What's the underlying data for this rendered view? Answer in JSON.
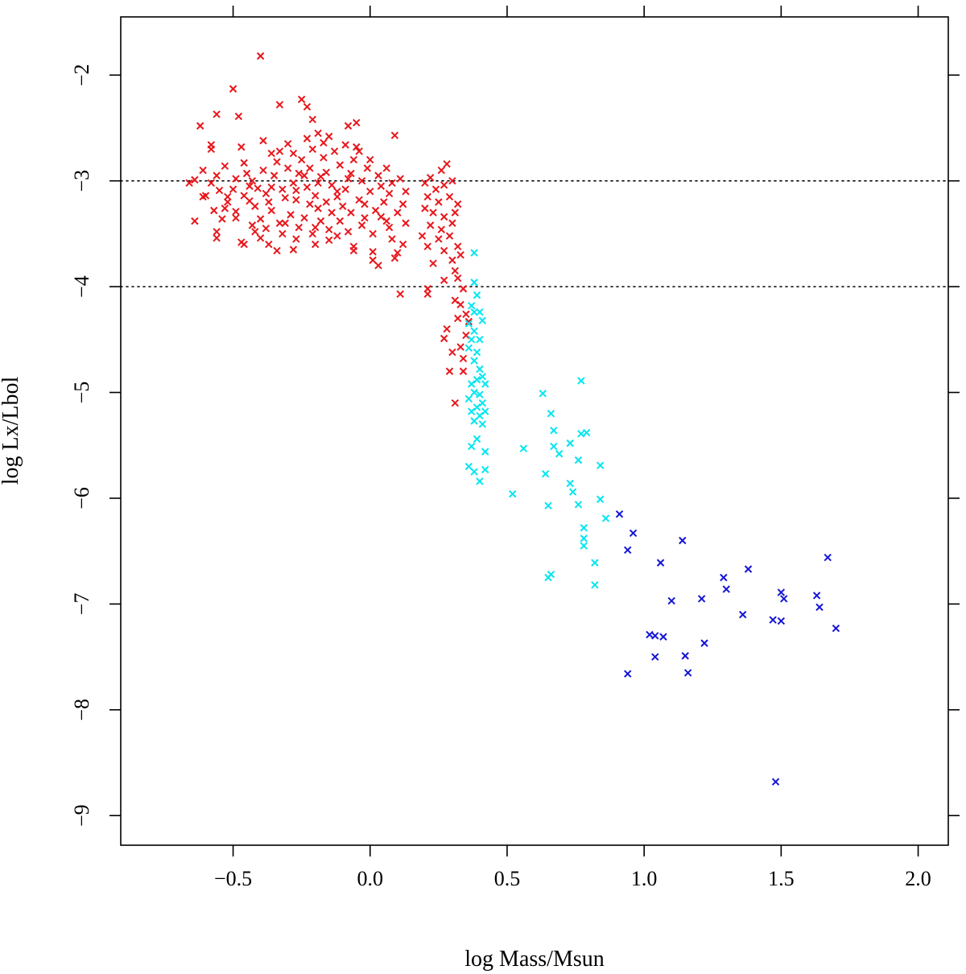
{
  "chart_data": {
    "type": "scatter",
    "title": "",
    "xlabel": "log Mass/Msun",
    "ylabel": "log Lx/Lbol",
    "xlim": [
      -0.91,
      2.11
    ],
    "ylim": [
      -9.28,
      -1.45
    ],
    "x_ticks": [
      -0.5,
      0.0,
      0.5,
      1.0,
      1.5,
      2.0
    ],
    "x_tick_labels": [
      "−0.5",
      "0.0",
      "0.5",
      "1.0",
      "1.5",
      "2.0"
    ],
    "y_ticks": [
      -2,
      -3,
      -4,
      -5,
      -6,
      -7,
      -8,
      -9
    ],
    "y_tick_labels": [
      "−2",
      "−3",
      "−4",
      "−5",
      "−6",
      "−7",
      "−8",
      "−9"
    ],
    "marker": "x",
    "grid": false,
    "reference_lines": [
      {
        "axis": "y",
        "value": -3,
        "style": "dotted"
      },
      {
        "axis": "y",
        "value": -4,
        "style": "dotted"
      }
    ],
    "series": [
      {
        "color": "#e8161b",
        "points": [
          [
            -0.4,
            -1.82
          ],
          [
            -0.5,
            -2.13
          ],
          [
            -0.25,
            -2.23
          ],
          [
            -0.33,
            -2.28
          ],
          [
            -0.23,
            -2.3
          ],
          [
            -0.56,
            -2.37
          ],
          [
            -0.48,
            -2.39
          ],
          [
            -0.62,
            -2.48
          ],
          [
            -0.21,
            -2.42
          ],
          [
            -0.05,
            -2.45
          ],
          [
            -0.08,
            -2.48
          ],
          [
            0.09,
            -2.57
          ],
          [
            -0.58,
            -2.66
          ],
          [
            -0.47,
            -2.68
          ],
          [
            -0.39,
            -2.62
          ],
          [
            -0.36,
            -2.74
          ],
          [
            -0.58,
            -2.7
          ],
          [
            -0.53,
            -2.86
          ],
          [
            -0.46,
            -2.83
          ],
          [
            -0.3,
            -2.65
          ],
          [
            -0.15,
            -2.58
          ],
          [
            0.28,
            -2.84
          ],
          [
            0.26,
            -2.9
          ],
          [
            -0.64,
            -2.99
          ],
          [
            -0.66,
            -3.02
          ],
          [
            -0.58,
            -3.02
          ],
          [
            -0.55,
            -3.09
          ],
          [
            -0.6,
            -3.14
          ],
          [
            -0.52,
            -3.15
          ],
          [
            -0.52,
            -3.2
          ],
          [
            -0.57,
            -3.28
          ],
          [
            -0.49,
            -3.29
          ],
          [
            -0.64,
            -3.38
          ],
          [
            -0.56,
            -3.48
          ],
          [
            -0.56,
            -3.54
          ],
          [
            -0.47,
            -3.58
          ],
          [
            -0.46,
            -3.6
          ],
          [
            -0.37,
            -3.6
          ],
          [
            -0.34,
            -3.66
          ],
          [
            -0.2,
            -3.6
          ],
          [
            -0.12,
            -3.52
          ],
          [
            -0.06,
            -3.62
          ],
          [
            -0.06,
            -3.66
          ],
          [
            0.01,
            -3.67
          ],
          [
            0.01,
            -3.75
          ],
          [
            0.03,
            -3.8
          ],
          [
            0.09,
            -3.73
          ],
          [
            0.1,
            -3.68
          ],
          [
            0.11,
            -4.07
          ],
          [
            -0.43,
            -3.0
          ],
          [
            -0.41,
            -3.07
          ],
          [
            -0.38,
            -3.12
          ],
          [
            -0.44,
            -3.19
          ],
          [
            -0.36,
            -3.28
          ],
          [
            -0.29,
            -3.32
          ],
          [
            -0.4,
            -3.36
          ],
          [
            -0.33,
            -3.4
          ],
          [
            -0.26,
            -3.44
          ],
          [
            -0.18,
            -3.38
          ],
          [
            -0.14,
            -3.3
          ],
          [
            -0.22,
            -3.22
          ],
          [
            -0.31,
            -3.16
          ],
          [
            -0.27,
            -3.09
          ],
          [
            -0.19,
            -3.02
          ],
          [
            -0.24,
            -2.95
          ],
          [
            -0.16,
            -2.92
          ],
          [
            -0.3,
            -2.88
          ],
          [
            -0.35,
            -2.95
          ],
          [
            -0.25,
            -2.8
          ],
          [
            -0.17,
            -2.78
          ],
          [
            -0.11,
            -2.85
          ],
          [
            -0.07,
            -2.93
          ],
          [
            -0.03,
            -3.0
          ],
          [
            -0.09,
            -3.08
          ],
          [
            -0.12,
            -3.15
          ],
          [
            -0.04,
            -3.18
          ],
          [
            0.0,
            -3.1
          ],
          [
            0.04,
            -3.05
          ],
          [
            0.07,
            -3.12
          ],
          [
            0.05,
            -3.2
          ],
          [
            0.02,
            -3.28
          ],
          [
            -0.02,
            -3.35
          ],
          [
            0.06,
            -3.38
          ],
          [
            0.1,
            -3.3
          ],
          [
            0.12,
            -3.22
          ],
          [
            0.08,
            -3.02
          ],
          [
            0.03,
            -2.95
          ],
          [
            -0.01,
            -2.88
          ],
          [
            -0.06,
            -2.8
          ],
          [
            -0.13,
            -2.72
          ],
          [
            -0.21,
            -2.7
          ],
          [
            -0.28,
            -2.74
          ],
          [
            -0.34,
            -2.82
          ],
          [
            -0.39,
            -2.9
          ],
          [
            -0.45,
            -2.93
          ],
          [
            -0.49,
            -2.98
          ],
          [
            -0.5,
            -3.08
          ],
          [
            -0.46,
            -3.14
          ],
          [
            -0.42,
            -3.24
          ],
          [
            -0.37,
            -3.2
          ],
          [
            -0.32,
            -3.08
          ],
          [
            -0.28,
            -3.02
          ],
          [
            -0.23,
            -3.06
          ],
          [
            -0.2,
            -3.14
          ],
          [
            -0.16,
            -3.2
          ],
          [
            -0.1,
            -3.24
          ],
          [
            -0.07,
            -3.3
          ],
          [
            -0.03,
            -3.42
          ],
          [
            0.01,
            -3.5
          ],
          [
            -0.15,
            -3.46
          ],
          [
            -0.21,
            -3.5
          ],
          [
            -0.27,
            -3.55
          ],
          [
            -0.32,
            -3.5
          ],
          [
            -0.38,
            -3.45
          ],
          [
            -0.43,
            -3.42
          ],
          [
            -0.49,
            -3.35
          ],
          [
            -0.53,
            -3.26
          ],
          [
            0.13,
            -3.4
          ],
          [
            0.13,
            -3.1
          ],
          [
            0.11,
            -2.98
          ],
          [
            0.06,
            -2.88
          ],
          [
            -0.26,
            -2.93
          ],
          [
            -0.22,
            -2.88
          ],
          [
            -0.18,
            -2.96
          ],
          [
            -0.14,
            -3.04
          ],
          [
            -0.08,
            -2.98
          ],
          [
            0.0,
            -2.8
          ],
          [
            -0.04,
            -2.72
          ],
          [
            -0.09,
            -2.66
          ],
          [
            -0.17,
            -2.64
          ],
          [
            -0.23,
            -2.6
          ],
          [
            0.2,
            -3.02
          ],
          [
            0.22,
            -2.97
          ],
          [
            0.24,
            -3.08
          ],
          [
            0.27,
            -3.04
          ],
          [
            0.3,
            -3.0
          ],
          [
            0.21,
            -3.15
          ],
          [
            0.25,
            -3.2
          ],
          [
            0.29,
            -3.15
          ],
          [
            0.32,
            -3.22
          ],
          [
            0.2,
            -3.26
          ],
          [
            0.23,
            -3.3
          ],
          [
            0.27,
            -3.34
          ],
          [
            0.31,
            -3.3
          ],
          [
            0.22,
            -3.42
          ],
          [
            0.26,
            -3.46
          ],
          [
            0.3,
            -3.4
          ],
          [
            0.19,
            -3.52
          ],
          [
            0.25,
            -3.55
          ],
          [
            0.29,
            -3.52
          ],
          [
            0.21,
            -3.62
          ],
          [
            0.27,
            -3.66
          ],
          [
            0.23,
            -3.78
          ],
          [
            0.3,
            -3.75
          ],
          [
            0.32,
            -3.62
          ],
          [
            0.33,
            -3.7
          ],
          [
            0.31,
            -3.85
          ],
          [
            0.27,
            -3.94
          ],
          [
            0.21,
            -4.02
          ],
          [
            0.21,
            -4.07
          ],
          [
            0.32,
            -3.92
          ],
          [
            0.34,
            -4.02
          ],
          [
            0.31,
            -4.13
          ],
          [
            0.33,
            -4.17
          ],
          [
            0.35,
            -4.26
          ],
          [
            0.32,
            -4.3
          ],
          [
            0.36,
            -4.33
          ],
          [
            0.35,
            -4.46
          ],
          [
            0.28,
            -4.4
          ],
          [
            0.33,
            -4.57
          ],
          [
            0.34,
            -4.68
          ],
          [
            0.27,
            -4.49
          ],
          [
            0.3,
            -4.62
          ],
          [
            0.34,
            -4.8
          ],
          [
            0.29,
            -4.8
          ],
          [
            0.31,
            -5.1
          ],
          [
            -0.61,
            -3.15
          ],
          [
            -0.4,
            -3.54
          ],
          [
            -0.28,
            -3.65
          ],
          [
            -0.24,
            -3.35
          ],
          [
            -0.12,
            -3.1
          ],
          [
            -0.33,
            -2.72
          ],
          [
            -0.19,
            -2.55
          ],
          [
            -0.05,
            -2.68
          ],
          [
            0.08,
            -3.55
          ],
          [
            0.12,
            -3.6
          ],
          [
            -0.44,
            -3.05
          ],
          [
            -0.36,
            -3.06
          ],
          [
            -0.27,
            -3.18
          ],
          [
            -0.19,
            -3.26
          ],
          [
            -0.11,
            -3.38
          ],
          [
            -0.02,
            -3.22
          ],
          [
            0.04,
            -3.34
          ],
          [
            -0.56,
            -2.95
          ],
          [
            -0.61,
            -2.9
          ],
          [
            -0.54,
            -3.36
          ],
          [
            -0.42,
            -3.48
          ],
          [
            -0.31,
            -3.4
          ],
          [
            -0.2,
            -3.44
          ],
          [
            -0.15,
            -3.56
          ],
          [
            -0.08,
            -3.48
          ],
          [
            0.07,
            -3.44
          ]
        ]
      },
      {
        "color": "#00e6f0",
        "points": [
          [
            0.38,
            -3.68
          ],
          [
            0.38,
            -3.96
          ],
          [
            0.39,
            -4.08
          ],
          [
            0.37,
            -4.18
          ],
          [
            0.38,
            -4.24
          ],
          [
            0.4,
            -4.24
          ],
          [
            0.41,
            -4.32
          ],
          [
            0.36,
            -4.35
          ],
          [
            0.38,
            -4.42
          ],
          [
            0.37,
            -4.5
          ],
          [
            0.4,
            -4.5
          ],
          [
            0.36,
            -4.58
          ],
          [
            0.39,
            -4.62
          ],
          [
            0.38,
            -4.7
          ],
          [
            0.4,
            -4.78
          ],
          [
            0.41,
            -4.85
          ],
          [
            0.39,
            -4.88
          ],
          [
            0.37,
            -4.92
          ],
          [
            0.42,
            -4.92
          ],
          [
            0.38,
            -5.0
          ],
          [
            0.4,
            -5.02
          ],
          [
            0.36,
            -5.06
          ],
          [
            0.41,
            -5.1
          ],
          [
            0.39,
            -5.14
          ],
          [
            0.37,
            -5.18
          ],
          [
            0.42,
            -5.18
          ],
          [
            0.4,
            -5.22
          ],
          [
            0.38,
            -5.27
          ],
          [
            0.41,
            -5.3
          ],
          [
            0.39,
            -5.44
          ],
          [
            0.42,
            -5.56
          ],
          [
            0.37,
            -5.51
          ],
          [
            0.36,
            -5.7
          ],
          [
            0.38,
            -5.75
          ],
          [
            0.42,
            -5.73
          ],
          [
            0.4,
            -5.84
          ],
          [
            0.52,
            -5.96
          ],
          [
            0.56,
            -5.53
          ],
          [
            0.63,
            -5.01
          ],
          [
            0.64,
            -5.77
          ],
          [
            0.66,
            -5.2
          ],
          [
            0.67,
            -5.36
          ],
          [
            0.67,
            -5.51
          ],
          [
            0.69,
            -5.58
          ],
          [
            0.65,
            -6.07
          ],
          [
            0.65,
            -6.75
          ],
          [
            0.66,
            -6.72
          ],
          [
            0.73,
            -5.48
          ],
          [
            0.73,
            -5.86
          ],
          [
            0.74,
            -5.94
          ],
          [
            0.76,
            -5.64
          ],
          [
            0.76,
            -6.06
          ],
          [
            0.77,
            -5.39
          ],
          [
            0.79,
            -5.38
          ],
          [
            0.77,
            -4.89
          ],
          [
            0.78,
            -6.28
          ],
          [
            0.78,
            -6.38
          ],
          [
            0.78,
            -6.45
          ],
          [
            0.84,
            -5.69
          ],
          [
            0.84,
            -6.01
          ],
          [
            0.86,
            -6.19
          ],
          [
            0.82,
            -6.61
          ],
          [
            0.82,
            -6.82
          ]
        ]
      },
      {
        "color": "#1515d6",
        "points": [
          [
            0.91,
            -6.15
          ],
          [
            0.96,
            -6.33
          ],
          [
            0.94,
            -6.49
          ],
          [
            1.06,
            -6.61
          ],
          [
            1.14,
            -6.4
          ],
          [
            0.94,
            -7.66
          ],
          [
            1.02,
            -7.29
          ],
          [
            1.04,
            -7.3
          ],
          [
            1.04,
            -7.5
          ],
          [
            1.07,
            -7.31
          ],
          [
            1.1,
            -6.97
          ],
          [
            1.15,
            -7.49
          ],
          [
            1.16,
            -7.65
          ],
          [
            1.21,
            -6.95
          ],
          [
            1.22,
            -7.37
          ],
          [
            1.29,
            -6.75
          ],
          [
            1.3,
            -6.86
          ],
          [
            1.36,
            -7.1
          ],
          [
            1.38,
            -6.67
          ],
          [
            1.47,
            -7.15
          ],
          [
            1.48,
            -8.68
          ],
          [
            1.5,
            -6.89
          ],
          [
            1.51,
            -6.95
          ],
          [
            1.5,
            -7.16
          ],
          [
            1.63,
            -6.92
          ],
          [
            1.64,
            -7.03
          ],
          [
            1.67,
            -6.56
          ],
          [
            1.7,
            -7.23
          ]
        ]
      }
    ]
  }
}
